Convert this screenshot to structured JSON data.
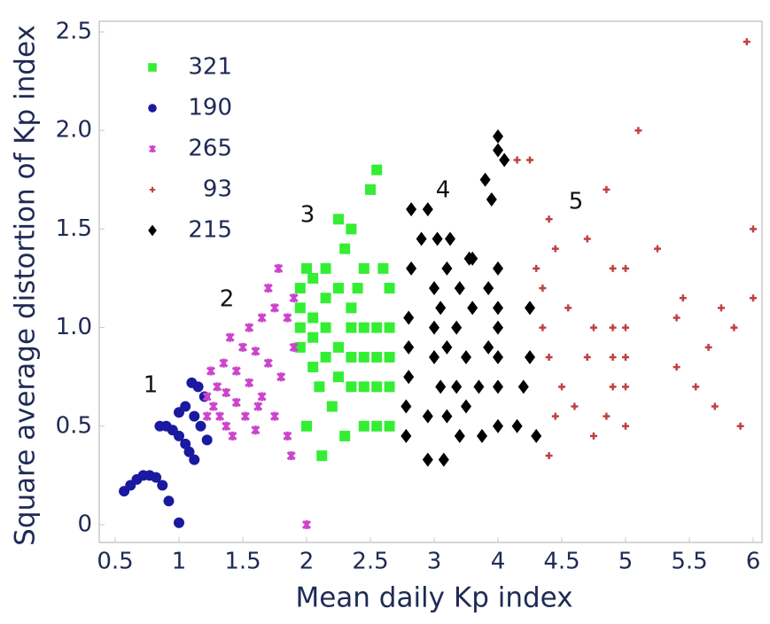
{
  "chart_data": {
    "type": "scatter",
    "xlabel": "Mean daily Kp index",
    "ylabel": "Square average distortion of Kp index",
    "xlim": [
      0.5,
      6
    ],
    "ylim": [
      0,
      2.5
    ],
    "xticks": [
      0.5,
      1,
      1.5,
      2,
      2.5,
      3,
      4,
      4.5,
      5,
      5.5,
      6
    ],
    "yticks": [
      0,
      0.5,
      {
        "value": 1,
        "label": "1.0"
      },
      1.5,
      {
        "value": 2,
        "label": "2.0"
      },
      2.5
    ],
    "legend": "upper left",
    "annotations": [
      "1",
      "2",
      "3",
      "4",
      "5"
    ],
    "series": [
      {
        "name": "321",
        "color": "#33ee33",
        "marker": "square",
        "x": [
          1.95,
          1.95,
          1.95,
          1.95,
          2.0,
          2.0,
          2.05,
          2.05,
          2.05,
          2.05,
          2.1,
          2.12,
          2.15,
          2.15,
          2.15,
          2.15,
          2.2,
          2.25,
          2.25,
          2.25,
          2.25,
          2.3,
          2.3,
          2.35,
          2.35,
          2.35,
          2.35,
          2.35,
          2.45,
          2.45,
          2.45,
          2.45,
          2.45,
          2.5,
          2.55,
          2.55,
          2.55,
          2.55,
          2.55,
          2.6,
          2.65,
          2.65,
          2.65,
          2.65,
          2.65,
          2.4
        ],
        "y": [
          0.9,
          1.0,
          1.1,
          1.2,
          0.5,
          1.3,
          0.8,
          0.95,
          1.05,
          1.25,
          0.7,
          0.35,
          0.85,
          1.0,
          1.15,
          1.3,
          0.6,
          0.75,
          0.9,
          1.2,
          1.55,
          0.45,
          1.4,
          0.7,
          0.85,
          1.0,
          1.1,
          1.5,
          0.5,
          0.7,
          0.85,
          1.0,
          1.3,
          1.7,
          0.5,
          0.7,
          0.85,
          1.0,
          1.8,
          1.3,
          0.5,
          0.7,
          0.85,
          1.0,
          1.2,
          1.2
        ]
      },
      {
        "name": "190",
        "color": "#1a1aa0",
        "marker": "circle",
        "x": [
          0.57,
          0.62,
          0.67,
          0.72,
          0.77,
          0.82,
          0.87,
          0.92,
          0.85,
          0.9,
          0.95,
          1.0,
          1.05,
          1.08,
          1.12,
          1.0,
          1.05,
          1.12,
          1.17,
          1.22,
          1.1,
          1.15,
          1.2,
          1.0
        ],
        "y": [
          0.17,
          0.2,
          0.23,
          0.25,
          0.25,
          0.24,
          0.2,
          0.12,
          0.5,
          0.5,
          0.48,
          0.45,
          0.41,
          0.37,
          0.33,
          0.57,
          0.6,
          0.55,
          0.5,
          0.43,
          0.72,
          0.7,
          0.65,
          0.01
        ]
      },
      {
        "name": "265",
        "color": "#cc44cc",
        "marker": "star",
        "x": [
          1.22,
          1.27,
          1.32,
          1.37,
          1.42,
          1.22,
          1.3,
          1.37,
          1.45,
          1.52,
          1.6,
          1.25,
          1.35,
          1.45,
          1.55,
          1.65,
          1.75,
          1.85,
          1.4,
          1.5,
          1.6,
          1.7,
          1.8,
          1.55,
          1.65,
          1.75,
          1.85,
          1.7,
          1.78,
          1.9,
          1.88,
          2.0,
          1.9,
          1.62
        ],
        "y": [
          0.55,
          0.6,
          0.55,
          0.5,
          0.45,
          0.65,
          0.7,
          0.67,
          0.62,
          0.55,
          0.48,
          0.78,
          0.82,
          0.78,
          0.72,
          0.65,
          0.55,
          0.45,
          0.95,
          0.9,
          0.88,
          0.82,
          0.75,
          1.0,
          1.05,
          1.1,
          1.05,
          1.2,
          1.3,
          1.15,
          0.35,
          0.0,
          0.9,
          0.6
        ]
      },
      {
        "name": "93",
        "color": "#c04040",
        "marker": "plus",
        "x": [
          4.3,
          4.35,
          4.35,
          4.4,
          4.4,
          4.4,
          4.45,
          4.45,
          4.5,
          4.55,
          4.6,
          4.7,
          4.7,
          4.75,
          4.75,
          4.85,
          4.85,
          4.9,
          4.9,
          4.9,
          4.9,
          5.0,
          5.0,
          5.0,
          5.0,
          5.0,
          5.1,
          5.25,
          5.4,
          5.4,
          5.45,
          5.55,
          5.7,
          5.75,
          5.65,
          5.85,
          5.9,
          5.95,
          6.0,
          6.0,
          4.25,
          4.15
        ],
        "y": [
          1.3,
          1.2,
          1.0,
          0.85,
          1.55,
          0.35,
          0.55,
          1.4,
          0.7,
          1.1,
          0.6,
          0.85,
          1.45,
          0.45,
          1.0,
          0.55,
          1.7,
          0.7,
          0.85,
          1.3,
          1.0,
          0.5,
          0.7,
          0.85,
          1.0,
          1.3,
          2.0,
          1.4,
          0.8,
          1.05,
          1.15,
          0.7,
          0.6,
          1.1,
          0.9,
          1.0,
          0.5,
          2.45,
          1.5,
          1.15,
          1.85,
          1.85
        ]
      },
      {
        "name": "215",
        "color": "#000000",
        "marker": "diamond",
        "x": [
          2.78,
          2.78,
          2.8,
          2.8,
          2.8,
          2.82,
          2.82,
          2.9,
          2.95,
          2.95,
          2.95,
          3.0,
          3.0,
          3.0,
          3.05,
          3.1,
          3.1,
          3.15,
          3.2,
          3.2,
          3.2,
          3.25,
          3.35,
          3.35,
          3.4,
          3.4,
          3.5,
          3.5,
          3.6,
          3.6,
          3.7,
          3.75,
          3.8,
          3.85,
          3.85,
          3.9,
          4.0,
          4.0,
          4.0,
          4.0,
          4.0,
          4.0,
          4.0,
          4.0,
          4.15,
          4.2,
          4.25,
          4.25,
          4.3,
          4.05,
          3.55
        ],
        "y": [
          0.45,
          0.6,
          0.75,
          0.9,
          1.05,
          1.3,
          1.6,
          1.45,
          1.6,
          0.33,
          0.55,
          0.85,
          1.0,
          1.2,
          1.45,
          0.7,
          1.1,
          0.33,
          0.55,
          0.9,
          1.3,
          1.45,
          0.7,
          1.0,
          1.2,
          0.45,
          0.6,
          0.85,
          1.1,
          1.35,
          0.7,
          0.45,
          1.75,
          0.9,
          1.2,
          1.65,
          0.5,
          0.7,
          0.85,
          1.0,
          1.1,
          1.3,
          1.9,
          1.97,
          0.5,
          0.7,
          0.85,
          1.1,
          0.45,
          1.85,
          1.35
        ]
      }
    ]
  }
}
